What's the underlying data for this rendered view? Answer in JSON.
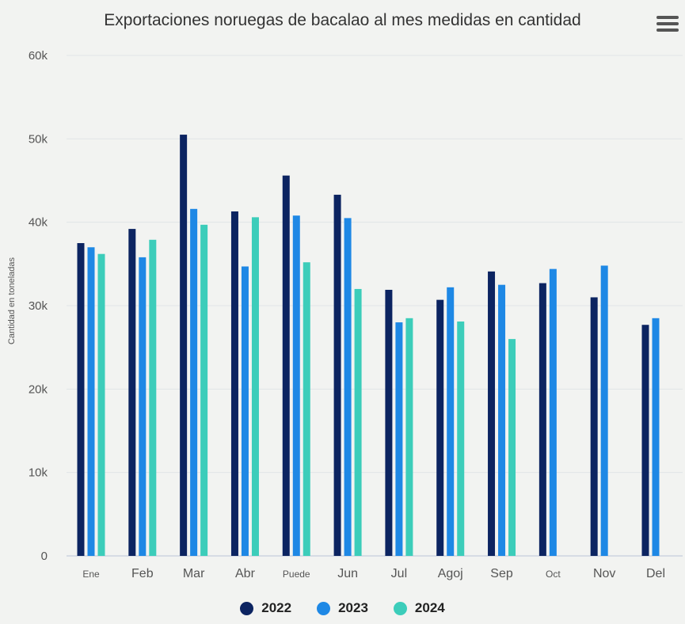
{
  "chart_data": {
    "type": "bar",
    "title": "Exportaciones noruegas de bacalao al mes medidas en cantidad",
    "ylabel": "Cantidad en toneladas",
    "xlabel": "",
    "categories": [
      "Ene",
      "Feb",
      "Mar",
      "Abr",
      "Puede",
      "Jun",
      "Jul",
      "Agoj",
      "Sep",
      "Oct",
      "Nov",
      "Del"
    ],
    "ylim": [
      0,
      60000
    ],
    "yticks": [
      0,
      10000,
      20000,
      30000,
      40000,
      50000,
      60000
    ],
    "ytick_labels": [
      "0",
      "10k",
      "20k",
      "30k",
      "40k",
      "50k",
      "60k"
    ],
    "grid": true,
    "legend_position": "bottom",
    "series": [
      {
        "name": "2022",
        "color": "#0c2461",
        "values": [
          37500,
          39200,
          50500,
          41300,
          45600,
          43300,
          31900,
          30700,
          34100,
          32700,
          31000,
          27700
        ]
      },
      {
        "name": "2023",
        "color": "#1e88e5",
        "values": [
          37000,
          35800,
          41600,
          34700,
          40800,
          40500,
          28000,
          32200,
          32500,
          34400,
          34800,
          28500
        ]
      },
      {
        "name": "2024",
        "color": "#3ccdba",
        "values": [
          36200,
          37900,
          39700,
          40600,
          35200,
          32000,
          28500,
          28100,
          26000,
          null,
          null,
          null
        ]
      }
    ]
  }
}
